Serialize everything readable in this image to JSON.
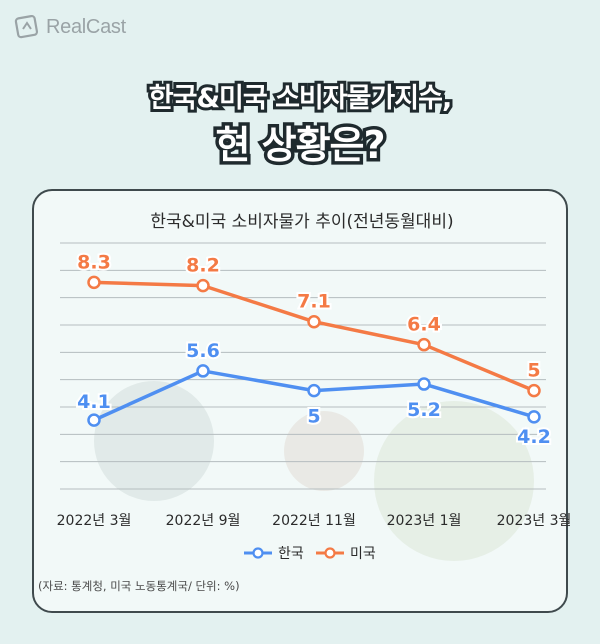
{
  "brand": {
    "name": "RealCast",
    "logo_icon": "realcast-logo-icon"
  },
  "headline": {
    "line1": "한국&미국 소비자물가지수,",
    "line2": "현 상황은?"
  },
  "source_note": "(자료: 통계청, 미국 노동통계국/ 단위: %)",
  "colors": {
    "korea": "#4f8ff1",
    "usa": "#f47a45",
    "grid": "#b5bdbf",
    "text": "#2b2b2b"
  },
  "chart_data": {
    "type": "line",
    "title": "한국&미국 소비자물가 추이(전년동월대비)",
    "categories": [
      "2022년 3월",
      "2022년 9월",
      "2022년 11월",
      "2023년 1월",
      "2023년 3월"
    ],
    "series": [
      {
        "name": "한국",
        "values": [
          4.1,
          5.6,
          5,
          5.2,
          4.2
        ],
        "labels": [
          "4.1",
          "5.6",
          "5",
          "5.2",
          "4.2"
        ],
        "color": "#4f8ff1"
      },
      {
        "name": "미국",
        "values": [
          8.3,
          8.2,
          7.1,
          6.4,
          5
        ],
        "labels": [
          "8.3",
          "8.2",
          "7.1",
          "6.4",
          "5"
        ],
        "color": "#f47a45"
      }
    ],
    "ylim": [
      2,
      9.5
    ],
    "grid": true,
    "legend_position": "bottom"
  }
}
